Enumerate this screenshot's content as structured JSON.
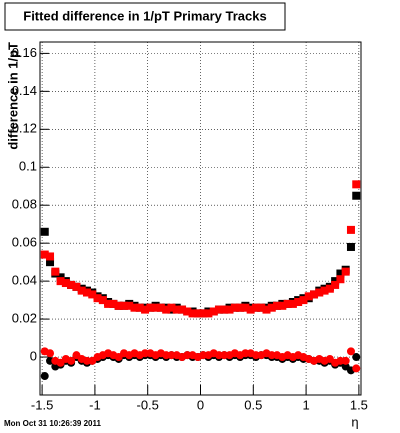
{
  "chart_data": {
    "type": "scatter",
    "title": "Fitted difference in 1/pT  Primary Tracks",
    "y_label": "difference in 1/pT",
    "x_label": "η",
    "footer": "Mon Oct 31 10:26:39 2011",
    "xlim": [
      -1.52,
      1.52
    ],
    "ylim": [
      -0.02,
      0.166
    ],
    "xticks": [
      -1.5,
      -1,
      -0.5,
      0,
      0.5,
      1,
      1.5
    ],
    "yticks": [
      0,
      0.02,
      0.04,
      0.06,
      0.08,
      0.1,
      0.12,
      0.14,
      0.16
    ],
    "grid": true,
    "x": [
      -1.475,
      -1.425,
      -1.375,
      -1.325,
      -1.275,
      -1.225,
      -1.175,
      -1.125,
      -1.075,
      -1.025,
      -0.975,
      -0.925,
      -0.875,
      -0.825,
      -0.775,
      -0.725,
      -0.675,
      -0.625,
      -0.575,
      -0.525,
      -0.475,
      -0.425,
      -0.375,
      -0.325,
      -0.275,
      -0.225,
      -0.175,
      -0.125,
      -0.075,
      -0.025,
      0.025,
      0.075,
      0.125,
      0.175,
      0.225,
      0.275,
      0.325,
      0.375,
      0.425,
      0.475,
      0.525,
      0.575,
      0.625,
      0.675,
      0.725,
      0.775,
      0.825,
      0.875,
      0.925,
      0.975,
      1.025,
      1.075,
      1.125,
      1.175,
      1.225,
      1.275,
      1.325,
      1.375,
      1.425,
      1.475
    ],
    "series": [
      {
        "color": "#000000",
        "marker": "square",
        "values": [
          0.066,
          0.05,
          0.044,
          0.042,
          0.04,
          0.038,
          0.037,
          0.036,
          0.035,
          0.034,
          0.032,
          0.031,
          0.029,
          0.028,
          0.027,
          0.027,
          0.028,
          0.027,
          0.026,
          0.026,
          0.026,
          0.027,
          0.026,
          0.026,
          0.025,
          0.026,
          0.025,
          0.024,
          0.024,
          0.023,
          0.023,
          0.024,
          0.024,
          0.025,
          0.025,
          0.026,
          0.026,
          0.026,
          0.027,
          0.026,
          0.026,
          0.026,
          0.026,
          0.027,
          0.027,
          0.028,
          0.028,
          0.029,
          0.03,
          0.031,
          0.031,
          0.033,
          0.035,
          0.036,
          0.037,
          0.04,
          0.044,
          0.046,
          0.058,
          0.085
        ]
      },
      {
        "color": "#ff0000",
        "marker": "square",
        "values": [
          0.054,
          0.053,
          0.045,
          0.04,
          0.039,
          0.038,
          0.037,
          0.035,
          0.034,
          0.033,
          0.031,
          0.03,
          0.028,
          0.028,
          0.027,
          0.027,
          0.027,
          0.026,
          0.026,
          0.025,
          0.026,
          0.026,
          0.026,
          0.025,
          0.026,
          0.025,
          0.025,
          0.024,
          0.023,
          0.023,
          0.023,
          0.023,
          0.024,
          0.025,
          0.025,
          0.025,
          0.026,
          0.026,
          0.026,
          0.025,
          0.026,
          0.026,
          0.025,
          0.026,
          0.027,
          0.027,
          0.028,
          0.028,
          0.029,
          0.03,
          0.032,
          0.033,
          0.034,
          0.035,
          0.036,
          0.038,
          0.041,
          0.045,
          0.067,
          0.091
        ]
      },
      {
        "color": "#000000",
        "marker": "circle",
        "values": [
          -0.01,
          -0.002,
          -0.005,
          -0.004,
          -0.002,
          -0.003,
          0.0,
          -0.002,
          -0.003,
          -0.002,
          -0.001,
          0.0,
          0.001,
          0.0,
          -0.001,
          0.001,
          0.0,
          0.001,
          0.0,
          0.001,
          0.001,
          0.0,
          0.001,
          0.0,
          0.001,
          0.0,
          0.0,
          0.001,
          0.0,
          0.0,
          0.001,
          0.0,
          0.001,
          0.0,
          0.001,
          0.0,
          0.001,
          0.0,
          0.001,
          0.001,
          0.0,
          0.001,
          0.001,
          0.0,
          0.0,
          -0.001,
          0.0,
          -0.001,
          0.0,
          -0.001,
          -0.001,
          -0.002,
          -0.002,
          -0.003,
          -0.002,
          -0.004,
          -0.003,
          -0.005,
          -0.007,
          0.0
        ]
      },
      {
        "color": "#ff0000",
        "marker": "circle",
        "values": [
          0.003,
          0.002,
          -0.002,
          -0.003,
          -0.001,
          -0.002,
          0.001,
          -0.001,
          -0.002,
          -0.002,
          0.0,
          0.001,
          0.002,
          0.001,
          0.0,
          0.002,
          0.001,
          0.002,
          0.001,
          0.002,
          0.002,
          0.001,
          0.002,
          0.001,
          0.001,
          0.001,
          0.0,
          0.001,
          0.001,
          0.0,
          0.001,
          0.001,
          0.002,
          0.001,
          0.001,
          0.001,
          0.002,
          0.001,
          0.002,
          0.002,
          0.001,
          0.001,
          0.002,
          0.001,
          0.001,
          0.0,
          0.001,
          0.0,
          0.001,
          0.0,
          -0.001,
          -0.002,
          -0.001,
          -0.002,
          -0.001,
          -0.003,
          -0.002,
          -0.002,
          0.003,
          -0.006
        ]
      }
    ]
  }
}
